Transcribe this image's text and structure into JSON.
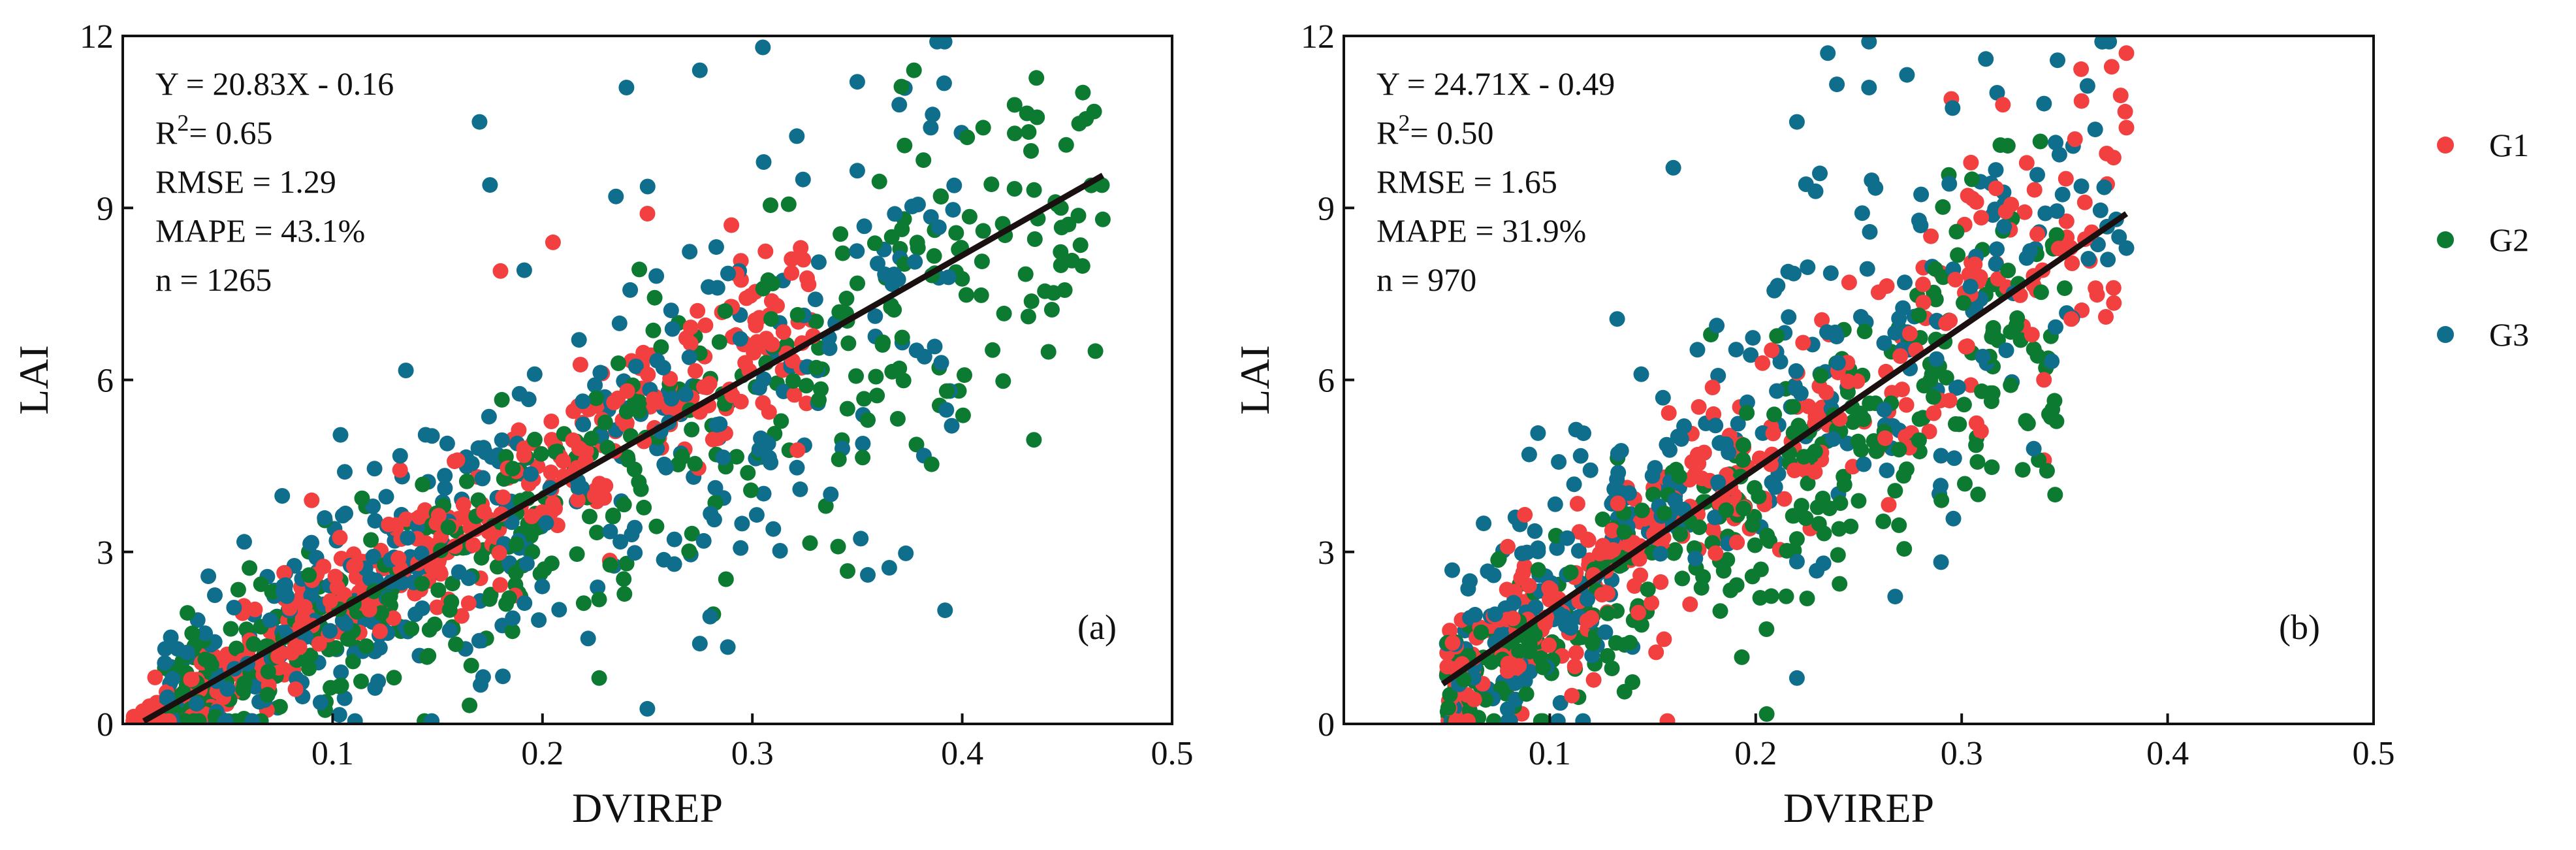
{
  "chart_data": [
    {
      "type": "scatter",
      "panel_label": "(a)",
      "xlabel": "DVIREP",
      "ylabel": "LAI",
      "xlim": [
        0,
        0.5
      ],
      "ylim": [
        0,
        12
      ],
      "x_tick_labels": [
        "0.1",
        "0.2",
        "0.3",
        "0.4",
        "0.5"
      ],
      "y_tick_labels": [
        "0",
        "3",
        "6",
        "9",
        "12"
      ],
      "stats_lines": [
        "Y = 20.83X - 0.16",
        "R",
        "= 0.65",
        "RMSE = 1.29",
        "MAPE = 43.1%",
        "n = 1265"
      ],
      "stats_superscript": "2",
      "fit": {
        "slope": 20.83,
        "intercept": -0.16,
        "x_range": [
          0.01,
          0.467
        ]
      },
      "n": 1265,
      "series": [
        {
          "name": "G1",
          "color": "#f23f3f",
          "count": 430,
          "x_range": [
            0.005,
            0.33
          ],
          "slope": 23.0,
          "intercept": -0.35,
          "noise": 0.75,
          "seed": 11
        },
        {
          "name": "G2",
          "color": "#0d7a31",
          "count": 440,
          "x_range": [
            0.02,
            0.467
          ],
          "slope": 20.0,
          "intercept": -0.3,
          "noise": 1.15,
          "seed": 23
        },
        {
          "name": "G3",
          "color": "#0f6e8c",
          "count": 395,
          "x_range": [
            0.02,
            0.4
          ],
          "slope": 20.5,
          "intercept": -0.1,
          "noise": 1.7,
          "seed": 37
        }
      ],
      "extra_points": {
        "G1": [
          [
            0.25,
            8.9
          ],
          [
            0.29,
            8.7
          ],
          [
            0.205,
            8.4
          ],
          [
            0.09,
            3.9
          ],
          [
            0.18,
            7.9
          ]
        ],
        "G2": [
          [
            0.377,
            11.4
          ],
          [
            0.41,
            10.4
          ],
          [
            0.425,
            10.3
          ],
          [
            0.447,
            9.0
          ],
          [
            0.467,
            8.8
          ],
          [
            0.447,
            8.0
          ],
          [
            0.41,
            8.6
          ],
          [
            0.37,
            6.2
          ],
          [
            0.355,
            5.3
          ],
          [
            0.335,
            3.8
          ],
          [
            0.227,
            0.8
          ]
        ],
        "G3": [
          [
            0.305,
            11.8
          ],
          [
            0.35,
            11.2
          ],
          [
            0.37,
            10.8
          ],
          [
            0.24,
            11.1
          ],
          [
            0.275,
            11.4
          ],
          [
            0.385,
            10.4
          ],
          [
            0.17,
            10.5
          ],
          [
            0.175,
            9.4
          ],
          [
            0.235,
            9.2
          ],
          [
            0.39,
            6.3
          ],
          [
            0.395,
            5.2
          ],
          [
            0.355,
            2.6
          ],
          [
            0.275,
            1.4
          ],
          [
            0.31,
            3.4
          ]
        ]
      }
    },
    {
      "type": "scatter",
      "panel_label": "(b)",
      "xlabel": "DVIREP",
      "ylabel": "LAI",
      "xlim": [
        0,
        0.5
      ],
      "ylim": [
        0,
        12
      ],
      "x_tick_labels": [
        "0.1",
        "0.2",
        "0.3",
        "0.4",
        "0.5"
      ],
      "y_tick_labels": [
        "0",
        "3",
        "6",
        "9",
        "12"
      ],
      "stats_lines": [
        "Y = 24.71X - 0.49",
        "R",
        "= 0.50",
        "RMSE = 1.65",
        "MAPE = 31.9%",
        "n = 970"
      ],
      "stats_superscript": "2",
      "fit": {
        "slope": 24.71,
        "intercept": -0.49,
        "x_range": [
          0.048,
          0.38
        ]
      },
      "n": 970,
      "series": [
        {
          "name": "G1",
          "color": "#f23f3f",
          "count": 330,
          "x_range": [
            0.05,
            0.38
          ],
          "slope": 26.0,
          "intercept": -0.6,
          "noise": 1.0,
          "seed": 51
        },
        {
          "name": "G2",
          "color": "#0d7a31",
          "count": 330,
          "x_range": [
            0.05,
            0.35
          ],
          "slope": 22.0,
          "intercept": -0.5,
          "noise": 1.2,
          "seed": 67
        },
        {
          "name": "G3",
          "color": "#0f6e8c",
          "count": 310,
          "x_range": [
            0.05,
            0.38
          ],
          "slope": 26.0,
          "intercept": 0.0,
          "noise": 1.6,
          "seed": 83
        }
      ],
      "extra_points": {
        "G1": [
          [
            0.38,
            11.7
          ],
          [
            0.38,
            10.4
          ],
          [
            0.355,
            10.2
          ],
          [
            0.32,
            10.8
          ],
          [
            0.295,
            10.9
          ],
          [
            0.37,
            7.1
          ],
          [
            0.365,
            7.6
          ],
          [
            0.34,
            4.6
          ]
        ],
        "G2": [
          [
            0.305,
            9.5
          ],
          [
            0.32,
            8.6
          ],
          [
            0.35,
            7.6
          ]
        ],
        "G3": [
          [
            0.235,
            11.7
          ],
          [
            0.255,
            11.9
          ],
          [
            0.255,
            11.1
          ],
          [
            0.22,
            10.5
          ],
          [
            0.16,
            9.7
          ],
          [
            0.09,
            4.7
          ],
          [
            0.38,
            8.3
          ],
          [
            0.375,
            8.8
          ],
          [
            0.335,
            4.8
          ],
          [
            0.22,
            0.8
          ],
          [
            0.05,
            1.4
          ]
        ]
      }
    }
  ],
  "legend": [
    {
      "name": "G1",
      "color": "#f23f3f"
    },
    {
      "name": "G2",
      "color": "#0d7a31"
    },
    {
      "name": "G3",
      "color": "#0f6e8c"
    }
  ]
}
